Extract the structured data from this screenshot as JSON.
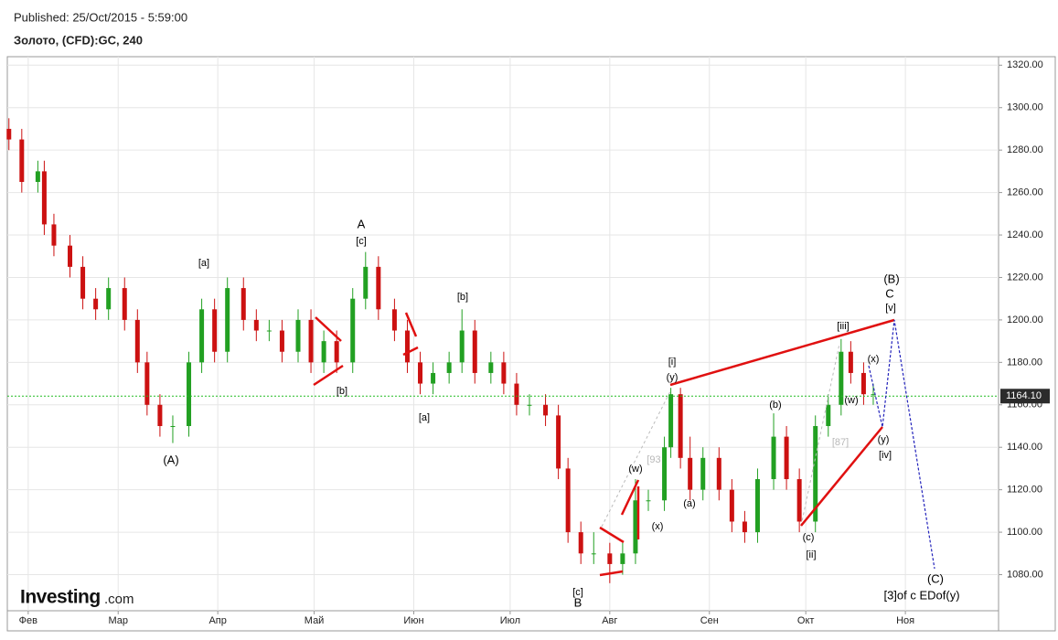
{
  "header": {
    "published": "Published: 25/Oct/2015 - 5:59:00",
    "instrument": "Золото, (CFD):GC, 240",
    "logo": "Investing",
    "logo_suffix": ".com"
  },
  "chart_data": {
    "type": "candlestick",
    "x": [
      -6,
      -2,
      3,
      5,
      8,
      13,
      17,
      21,
      25,
      30,
      34,
      37,
      41,
      45,
      50,
      54,
      58,
      62,
      67,
      71,
      75,
      79,
      84,
      88,
      92,
      96,
      101,
      105,
      109,
      114,
      118,
      122,
      126,
      131,
      135,
      139,
      144,
      148,
      152,
      156,
      161,
      165,
      168,
      172,
      176,
      181,
      185,
      189,
      193,
      198,
      200,
      203,
      206,
      210,
      215,
      219,
      223,
      227,
      232,
      236,
      240,
      245,
      249,
      253,
      256,
      260,
      263
    ],
    "open": [
      1290,
      1285,
      1265,
      1270,
      1245,
      1235,
      1225,
      1210,
      1205,
      1215,
      1200,
      1180,
      1160,
      1150,
      1150,
      1180,
      1205,
      1185,
      1215,
      1200,
      1195,
      1195,
      1185,
      1200,
      1180,
      1190,
      1180,
      1210,
      1225,
      1205,
      1195,
      1180,
      1170,
      1175,
      1180,
      1195,
      1175,
      1180,
      1170,
      1160,
      1160,
      1155,
      1130,
      1100,
      1090,
      1090,
      1085,
      1090,
      1115,
      1115,
      1140,
      1165,
      1135,
      1120,
      1135,
      1120,
      1105,
      1100,
      1125,
      1145,
      1125,
      1105,
      1150,
      1160,
      1185,
      1175,
      1165
    ],
    "high": [
      1295,
      1290,
      1275,
      1275,
      1250,
      1240,
      1230,
      1215,
      1220,
      1220,
      1205,
      1185,
      1165,
      1155,
      1185,
      1210,
      1210,
      1220,
      1220,
      1205,
      1200,
      1200,
      1205,
      1205,
      1195,
      1195,
      1215,
      1232,
      1230,
      1210,
      1200,
      1185,
      1180,
      1185,
      1205,
      1200,
      1185,
      1185,
      1175,
      1165,
      1165,
      1160,
      1135,
      1105,
      1100,
      1095,
      1095,
      1125,
      1120,
      1145,
      1168,
      1168,
      1145,
      1140,
      1140,
      1125,
      1110,
      1130,
      1156,
      1150,
      1130,
      1155,
      1165,
      1191,
      1190,
      1180,
      1170
    ],
    "low": [
      1280,
      1260,
      1260,
      1240,
      1230,
      1220,
      1205,
      1200,
      1200,
      1195,
      1175,
      1155,
      1145,
      1142,
      1145,
      1175,
      1180,
      1180,
      1195,
      1190,
      1190,
      1180,
      1180,
      1175,
      1175,
      1175,
      1175,
      1205,
      1200,
      1190,
      1175,
      1165,
      1165,
      1170,
      1175,
      1170,
      1170,
      1165,
      1155,
      1155,
      1150,
      1125,
      1095,
      1085,
      1085,
      1076,
      1080,
      1085,
      1110,
      1110,
      1135,
      1130,
      1115,
      1115,
      1115,
      1100,
      1095,
      1095,
      1120,
      1120,
      1100,
      1100,
      1145,
      1155,
      1170,
      1160,
      1160
    ],
    "close": [
      1285,
      1265,
      1270,
      1245,
      1235,
      1225,
      1210,
      1205,
      1215,
      1200,
      1180,
      1160,
      1150,
      1150,
      1180,
      1205,
      1185,
      1215,
      1200,
      1195,
      1195,
      1185,
      1200,
      1180,
      1190,
      1180,
      1210,
      1225,
      1205,
      1195,
      1180,
      1170,
      1175,
      1180,
      1195,
      1175,
      1180,
      1170,
      1160,
      1160,
      1155,
      1130,
      1100,
      1090,
      1090,
      1085,
      1090,
      1115,
      1115,
      1140,
      1165,
      1135,
      1120,
      1135,
      1120,
      1105,
      1100,
      1125,
      1145,
      1125,
      1105,
      1150,
      1160,
      1185,
      1175,
      1165,
      1165
    ],
    "up_color": "#22a022",
    "down_color": "#cc1111",
    "xlim": [
      -6.5,
      302
    ],
    "xticks": [
      {
        "value": 0,
        "label": "Фев"
      },
      {
        "value": 28,
        "label": "Мар"
      },
      {
        "value": 59,
        "label": "Апр"
      },
      {
        "value": 89,
        "label": "Май"
      },
      {
        "value": 120,
        "label": "Июн"
      },
      {
        "value": 150,
        "label": "Июл"
      },
      {
        "value": 181,
        "label": "Авг"
      },
      {
        "value": 212,
        "label": "Сен"
      },
      {
        "value": 242,
        "label": "Окт"
      },
      {
        "value": 273,
        "label": "Ноя"
      }
    ],
    "ylim": [
      1063,
      1324
    ],
    "yticks": [
      {
        "value": 1080,
        "label": "1080.00"
      },
      {
        "value": 1100,
        "label": "1100.00"
      },
      {
        "value": 1120,
        "label": "1120.00"
      },
      {
        "value": 1140,
        "label": "1140.00"
      },
      {
        "value": 1160,
        "label": "1160.00"
      },
      {
        "value": 1180,
        "label": "1180.00"
      },
      {
        "value": 1200,
        "label": "1200.00"
      },
      {
        "value": 1220,
        "label": "1220.00"
      },
      {
        "value": 1240,
        "label": "1240.00"
      },
      {
        "value": 1260,
        "label": "1260.00"
      },
      {
        "value": 1280,
        "label": "1280.00"
      },
      {
        "value": 1300,
        "label": "1300.00"
      },
      {
        "value": 1320,
        "label": "1320.00"
      }
    ],
    "last_price": {
      "value": 1164.1,
      "label": "1164.10"
    },
    "grid": true,
    "annotations": [
      "A",
      "[c]",
      "[a]",
      "(A)",
      "[b]",
      "[a]",
      "[b]",
      "[c]",
      "B",
      "[i]",
      "(y)",
      "(w)",
      "(x)",
      "(a)",
      "(b)",
      "(c)",
      "[ii]",
      "[iii]",
      "(x)",
      "(w)",
      "(y)",
      "[iv]",
      "(B)",
      "C",
      "[v]",
      "(C)",
      "[3]of c EDof(y)",
      "[93",
      "[87]"
    ]
  }
}
